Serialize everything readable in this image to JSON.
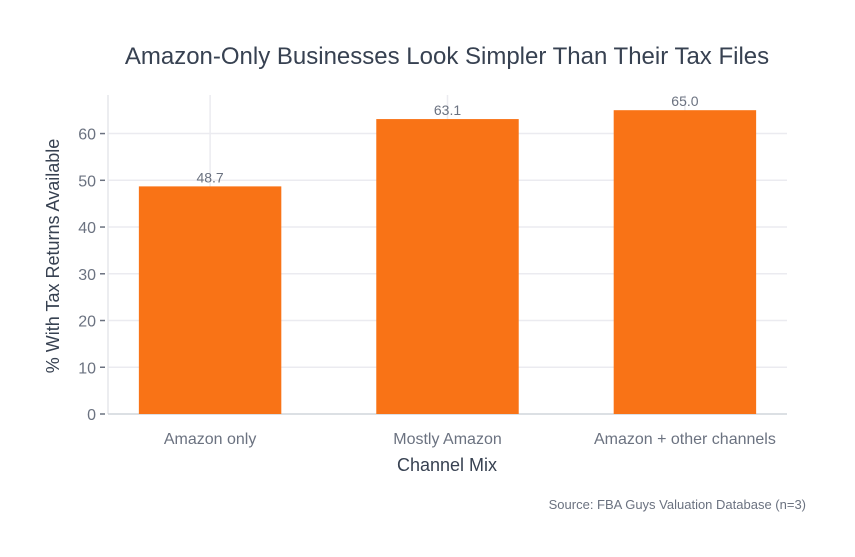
{
  "chart_data": {
    "type": "bar",
    "title": "Amazon-Only Businesses Look Simpler Than Their Tax Files",
    "xlabel": "Channel Mix",
    "ylabel": "% With Tax Returns Available",
    "categories": [
      "Amazon only",
      "Mostly Amazon",
      "Amazon + other channels"
    ],
    "values": [
      48.7,
      63.1,
      65.0
    ],
    "data_labels": [
      "48.7",
      "63.1",
      "65.0"
    ],
    "ylim": [
      0,
      68.25
    ],
    "yticks": [
      0,
      10,
      20,
      30,
      40,
      50,
      60
    ],
    "grid": true,
    "bar_color": "#F97316",
    "source": "Source: FBA Guys Valuation Database (n=3)"
  }
}
